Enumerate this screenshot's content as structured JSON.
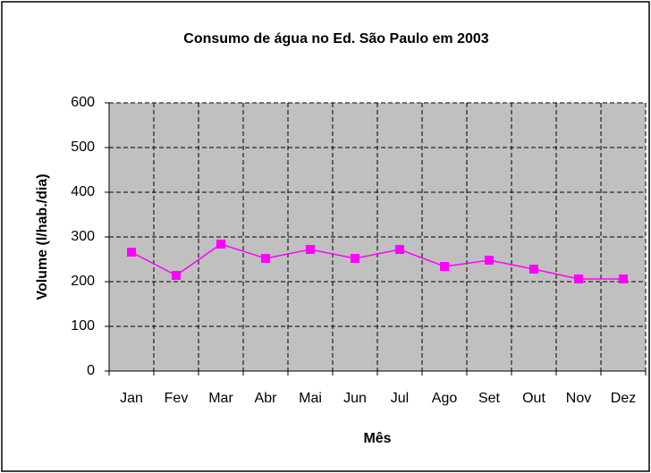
{
  "chart_data": {
    "type": "line",
    "title": "Consumo de água no Ed. São Paulo em 2003",
    "x_label": "Mês",
    "y_label": "Volume (l/hab./dia)",
    "categories": [
      "Jan",
      "Fev",
      "Mar",
      "Abr",
      "Mai",
      "Jun",
      "Jul",
      "Ago",
      "Set",
      "Out",
      "Nov",
      "Dez"
    ],
    "series": [
      {
        "name": "Volume",
        "color": "#ff00ff",
        "values": [
          266,
          214,
          284,
          252,
          272,
          252,
          272,
          234,
          248,
          228,
          206,
          206
        ]
      }
    ],
    "ylim": [
      0,
      600
    ],
    "yticks": [
      0,
      100,
      200,
      300,
      400,
      500,
      600
    ],
    "grid": true,
    "plot_background": "#c0c0c0"
  }
}
